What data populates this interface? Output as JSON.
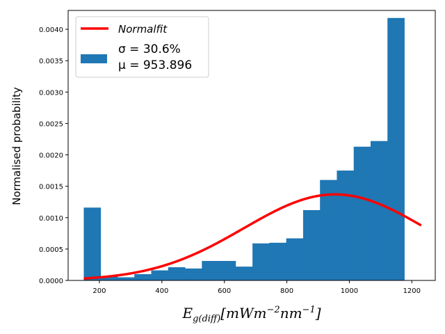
{
  "chart_data": {
    "type": "bar",
    "title": "",
    "xlabel": "E_{g(diff)}[mWm^{-2}nm^{-1}]",
    "ylabel": "Normalised probability",
    "xlim": [
      100,
      1275
    ],
    "ylim": [
      0,
      0.0043
    ],
    "x_ticks": [
      200,
      400,
      600,
      800,
      1000,
      1200
    ],
    "x_tick_labels": [
      "200",
      "400",
      "600",
      "800",
      "1000",
      "1200"
    ],
    "y_ticks": [
      0,
      0.0005,
      0.001,
      0.0015,
      0.002,
      0.0025,
      0.003,
      0.0035,
      0.004
    ],
    "y_tick_labels": [
      "0.0000",
      "0.0005",
      "0.0010",
      "0.0015",
      "0.0020",
      "0.0025",
      "0.0030",
      "0.0035",
      "0.0040"
    ],
    "grid": false,
    "legend_position": "top-left",
    "series": [
      {
        "name": "Normalfit",
        "kind": "line",
        "color": "#ff0000",
        "mu": 953.896,
        "sigma_pct": 30.6,
        "x_range": [
          150,
          1230
        ],
        "peak_density": 0.00137
      },
      {
        "name": "σ = 30.6%|μ = 953.896",
        "kind": "histogram",
        "color": "#1f77b4",
        "bin_edges": [
          150,
          204,
          258,
          312,
          366,
          420,
          474,
          528,
          582,
          636,
          690,
          744,
          798,
          852,
          906,
          960,
          1014,
          1068,
          1122,
          1176,
          1230
        ],
        "values": [
          0.00116,
          7e-05,
          5e-05,
          0.0001,
          0.00016,
          0.00021,
          0.00019,
          0.00031,
          0.00031,
          0.00022,
          0.00059,
          0.0006,
          0.00067,
          0.00112,
          0.0016,
          0.00175,
          0.00213,
          0.00222,
          0.00418,
          0.0
        ]
      }
    ],
    "legend": {
      "line_label": "Normalfit",
      "hist_label_line1": "σ = 30.6%",
      "hist_label_line2": "μ = 953.896"
    }
  }
}
